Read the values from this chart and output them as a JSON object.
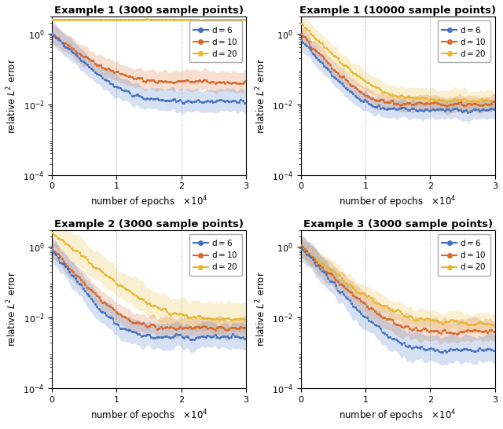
{
  "titles": [
    "Example 1 (3000 sample points)",
    "Example 1 (10000 sample points)",
    "Example 2 (3000 sample points)",
    "Example 3 (3000 sample points)"
  ],
  "xlabel": "number of epochs",
  "xlabel_offset": "$\\times10^{4}$",
  "ylabel": "relative $L^2$ error",
  "colors": {
    "d6": "#4472c4",
    "d10": "#d96929",
    "d20": "#e8b830"
  },
  "legend_labels": [
    "d=6",
    "d=10",
    "d=20"
  ],
  "xlim": [
    0,
    30000
  ],
  "ylim": [
    0.0001,
    3.0
  ],
  "xticks": [
    0,
    10000,
    20000,
    30000
  ],
  "xtick_labels": [
    "0",
    "1",
    "2",
    "3"
  ],
  "yticks": [
    0.0001,
    0.01,
    1.0
  ],
  "n_epochs": 30000,
  "n_pts": 500
}
